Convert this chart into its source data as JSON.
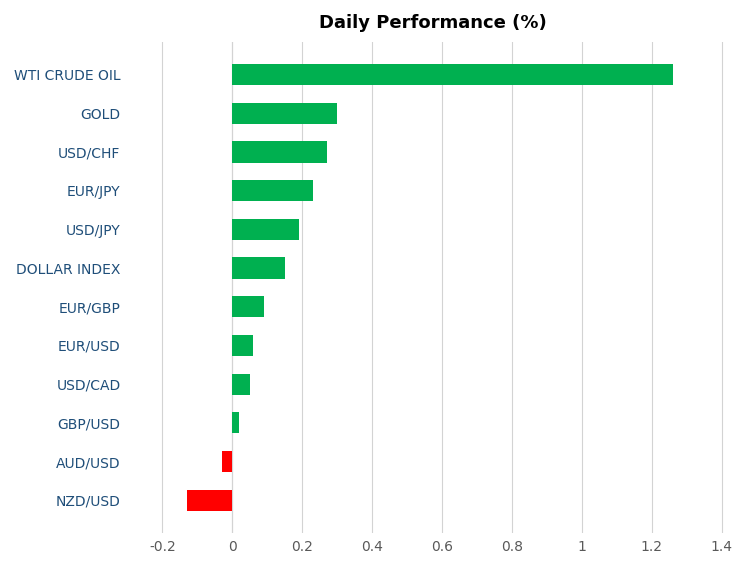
{
  "title": "Daily Performance (%)",
  "categories": [
    "WTI CRUDE OIL",
    "GOLD",
    "USD/CHF",
    "EUR/JPY",
    "USD/JPY",
    "DOLLAR INDEX",
    "EUR/GBP",
    "EUR/USD",
    "USD/CAD",
    "GBP/USD",
    "AUD/USD",
    "NZD/USD"
  ],
  "values": [
    1.26,
    0.3,
    0.27,
    0.23,
    0.19,
    0.15,
    0.09,
    0.06,
    0.05,
    0.02,
    -0.03,
    -0.13
  ],
  "bar_colors": [
    "#00b050",
    "#00b050",
    "#00b050",
    "#00b050",
    "#00b050",
    "#00b050",
    "#00b050",
    "#00b050",
    "#00b050",
    "#00b050",
    "#ff0000",
    "#ff0000"
  ],
  "xlim": [
    -0.3,
    1.45
  ],
  "xticks": [
    -0.2,
    0.0,
    0.2,
    0.4,
    0.6,
    0.8,
    1.0,
    1.2,
    1.4
  ],
  "xtick_labels": [
    "-0.2",
    "0",
    "0.2",
    "0.4",
    "0.6",
    "0.8",
    "1",
    "1.2",
    "1.4"
  ],
  "title_fontsize": 13,
  "title_fontweight": "bold",
  "background_color": "#ffffff",
  "grid_color": "#d3d3d3",
  "label_color": "#1f4e79",
  "tick_color": "#595959",
  "bar_height": 0.55,
  "label_fontsize": 10
}
